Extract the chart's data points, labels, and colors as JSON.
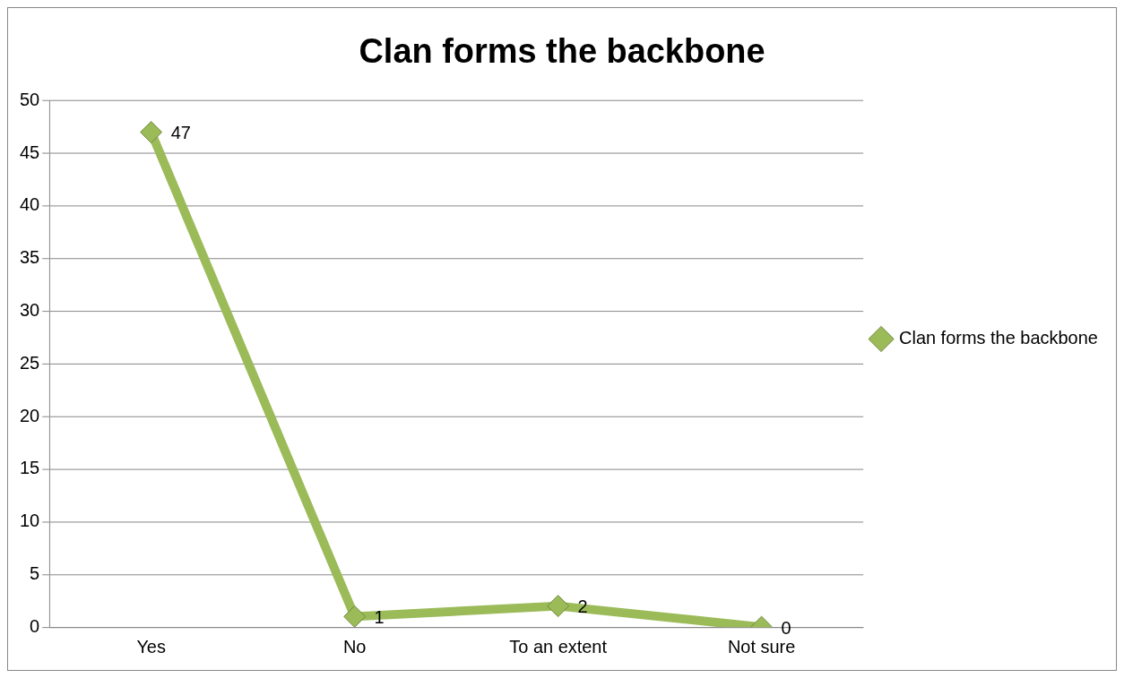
{
  "chart_data": {
    "type": "line",
    "title": "Clan forms the backbone",
    "categories": [
      "Yes",
      "No",
      "To an extent",
      "Not sure"
    ],
    "series": [
      {
        "name": "Clan forms the backbone",
        "color": "#9bbb59",
        "values": [
          47,
          1,
          2,
          0
        ]
      }
    ],
    "ylim": [
      0,
      50
    ],
    "yticks": [
      0,
      5,
      10,
      15,
      20,
      25,
      30,
      35,
      40,
      45,
      50
    ],
    "grid": "y",
    "legend": "right",
    "marker": "diamond",
    "line_style": "solid",
    "data_labels": true
  }
}
